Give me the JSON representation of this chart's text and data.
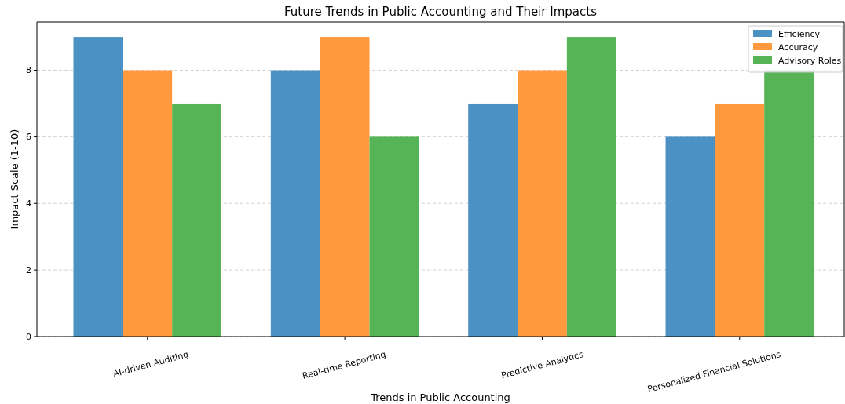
{
  "chart_data": {
    "type": "bar",
    "title": "Future Trends in Public Accounting and Their Impacts",
    "xlabel": "Trends in Public Accounting",
    "ylabel": "Impact Scale (1-10)",
    "categories": [
      "AI-driven Auditing",
      "Real-time Reporting",
      "Predictive Analytics",
      "Personalized Financial Solutions"
    ],
    "series": [
      {
        "name": "Efficiency",
        "color": "#4c91c3",
        "values": [
          9,
          8,
          7,
          6
        ]
      },
      {
        "name": "Accuracy",
        "color": "#ff993e",
        "values": [
          8,
          9,
          8,
          7
        ]
      },
      {
        "name": "Advisory Roles",
        "color": "#56b356",
        "values": [
          7,
          6,
          9,
          8
        ]
      }
    ],
    "ylim": [
      0,
      9.45
    ],
    "yticks": [
      0,
      2,
      4,
      6,
      8
    ],
    "grid": "y",
    "legend": "top right"
  }
}
